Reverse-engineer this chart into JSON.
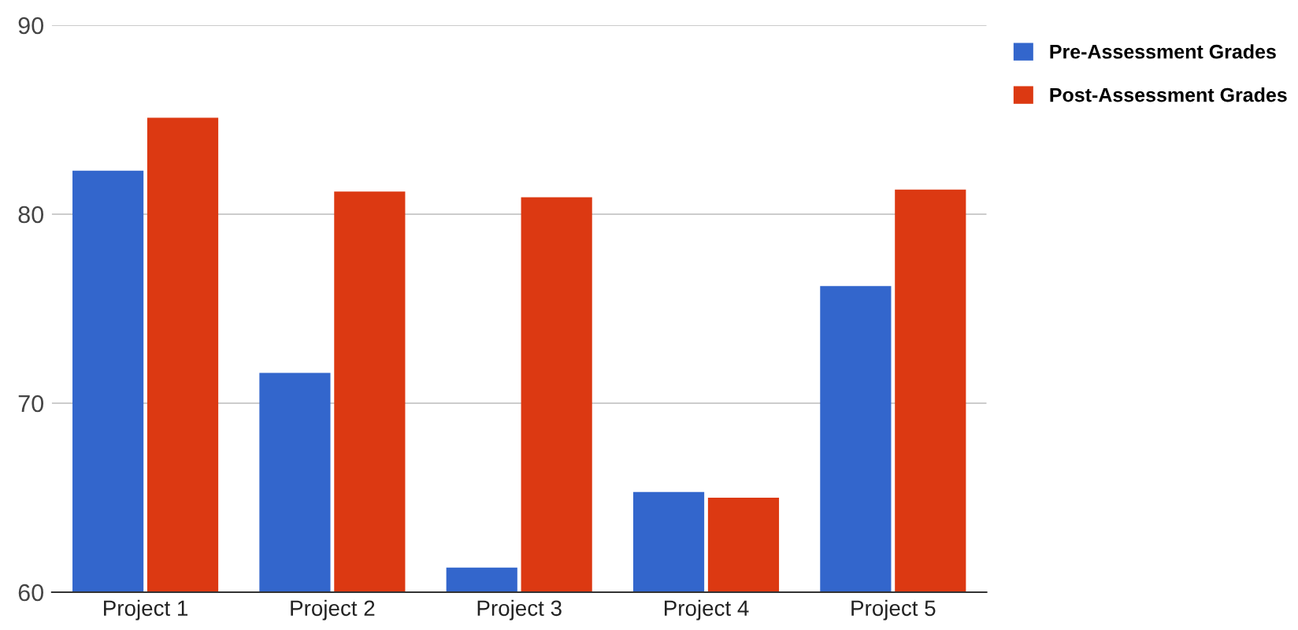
{
  "chart_data": {
    "type": "bar",
    "categories": [
      "Project 1",
      "Project 2",
      "Project 3",
      "Project 4",
      "Project 5"
    ],
    "series": [
      {
        "name": "Pre-Assessment Grades",
        "color": "#3366cc",
        "values": [
          82.3,
          71.6,
          61.3,
          65.3,
          76.2
        ]
      },
      {
        "name": "Post-Assessment Grades",
        "color": "#dc3912",
        "values": [
          85.1,
          81.2,
          80.9,
          65.0,
          81.3
        ]
      }
    ],
    "ylim": [
      60,
      90
    ],
    "yticks": [
      60,
      70,
      80,
      90
    ],
    "grid": "y",
    "legend": "top right"
  }
}
